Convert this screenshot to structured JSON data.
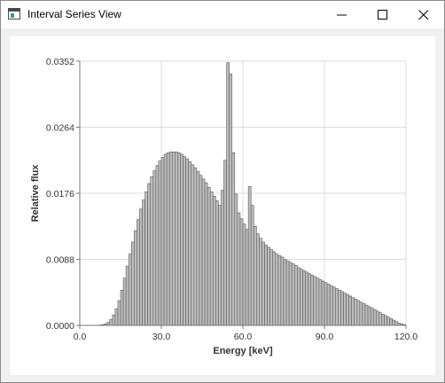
{
  "window": {
    "title": "Interval Series View",
    "icons": {
      "app": "app-window-icon",
      "minimize": "minimize-icon",
      "maximize": "maximize-icon",
      "close": "close-icon"
    }
  },
  "chart_data": {
    "type": "bar",
    "title": "",
    "xlabel": "Energy [keV]",
    "ylabel": "Relative flux",
    "xlim": [
      0,
      120
    ],
    "ylim": [
      0,
      0.0352
    ],
    "x_ticks": [
      "0.0",
      "30.0",
      "60.0",
      "90.0",
      "120.0"
    ],
    "y_ticks": [
      "0.0000",
      "0.0088",
      "0.0176",
      "0.0264",
      "0.0352"
    ],
    "grid": true,
    "bin_width": 1,
    "bar_color": "#bdbdbd",
    "bar_edge_color": "#5a5a5a",
    "x": [
      6.5,
      7.5,
      8.5,
      9.5,
      10.5,
      11.5,
      12.5,
      13.5,
      14.5,
      15.5,
      16.5,
      17.5,
      18.5,
      19.5,
      20.5,
      21.5,
      22.5,
      23.5,
      24.5,
      25.5,
      26.5,
      27.5,
      28.5,
      29.5,
      30.5,
      31.5,
      32.5,
      33.5,
      34.5,
      35.5,
      36.5,
      37.5,
      38.5,
      39.5,
      40.5,
      41.5,
      42.5,
      43.5,
      44.5,
      45.5,
      46.5,
      47.5,
      48.5,
      49.5,
      50.5,
      51.5,
      52.5,
      53.5,
      54.5,
      55.5,
      56.5,
      57.5,
      58.5,
      59.5,
      60.5,
      61.5,
      62.5,
      63.5,
      64.5,
      65.5,
      66.5,
      67.5,
      68.5,
      69.5,
      70.5,
      71.5,
      72.5,
      73.5,
      74.5,
      75.5,
      76.5,
      77.5,
      78.5,
      79.5,
      80.5,
      81.5,
      82.5,
      83.5,
      84.5,
      85.5,
      86.5,
      87.5,
      88.5,
      89.5,
      90.5,
      91.5,
      92.5,
      93.5,
      94.5,
      95.5,
      96.5,
      97.5,
      98.5,
      99.5,
      100.5,
      101.5,
      102.5,
      103.5,
      104.5,
      105.5,
      106.5,
      107.5,
      108.5,
      109.5,
      110.5,
      111.5,
      112.5,
      113.5,
      114.5,
      115.5,
      116.5,
      117.5,
      118.5,
      119.5
    ],
    "values": [
      2e-05,
      5e-05,
      0.0001,
      0.0002,
      0.0004,
      0.0008,
      0.0014,
      0.0022,
      0.0033,
      0.0047,
      0.0063,
      0.0079,
      0.0095,
      0.0111,
      0.0126,
      0.0141,
      0.0155,
      0.0167,
      0.0178,
      0.0189,
      0.0198,
      0.0206,
      0.0213,
      0.0219,
      0.0224,
      0.0228,
      0.023,
      0.0231,
      0.0231,
      0.0231,
      0.023,
      0.0228,
      0.0225,
      0.0222,
      0.0218,
      0.0214,
      0.021,
      0.0205,
      0.02,
      0.0195,
      0.019,
      0.0184,
      0.0178,
      0.0172,
      0.0166,
      0.016,
      0.018,
      0.022,
      0.035,
      0.0335,
      0.023,
      0.0175,
      0.015,
      0.0142,
      0.0135,
      0.0128,
      0.0185,
      0.016,
      0.0132,
      0.0122,
      0.0116,
      0.0111,
      0.0107,
      0.0104,
      0.0101,
      0.0098,
      0.0095,
      0.0093,
      0.0091,
      0.0088,
      0.0086,
      0.0084,
      0.0082,
      0.008,
      0.0077,
      0.0075,
      0.0073,
      0.0071,
      0.0069,
      0.0067,
      0.0065,
      0.0063,
      0.0061,
      0.0059,
      0.0057,
      0.0055,
      0.0053,
      0.0051,
      0.0049,
      0.0047,
      0.0045,
      0.0043,
      0.0041,
      0.0039,
      0.0037,
      0.0035,
      0.0033,
      0.0031,
      0.0029,
      0.0027,
      0.0025,
      0.0023,
      0.0021,
      0.0019,
      0.0017,
      0.0015,
      0.0013,
      0.0011,
      0.0009,
      0.0007,
      0.0005,
      0.0003,
      0.0002,
      0.0001
    ]
  }
}
